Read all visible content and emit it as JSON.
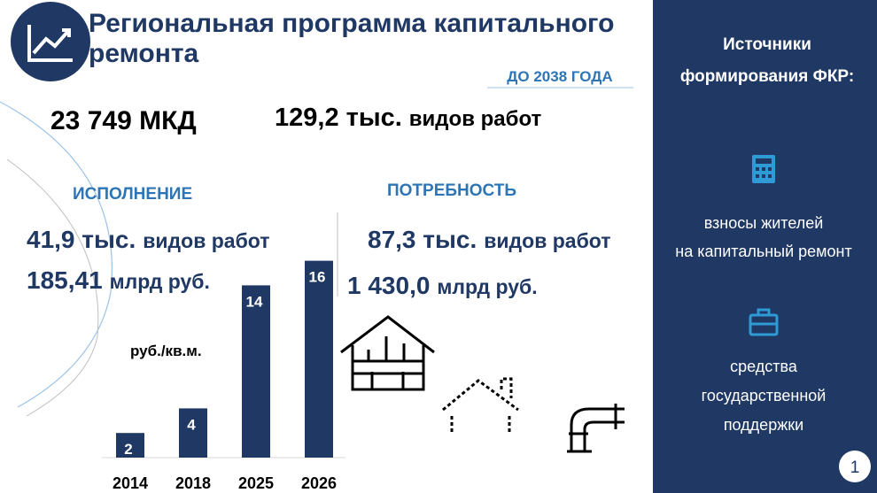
{
  "header": {
    "title_line1": "Региональная программа капитального",
    "title_line2": "ремонта",
    "period": "ДО 2038 ГОДА"
  },
  "totals": {
    "houses": "23 749 МКД",
    "works_number": "129,2 тыс.",
    "works_unit": "видов работ"
  },
  "execution": {
    "heading": "ИСПОЛНЕНИЕ",
    "works_number": "41,9 тыс.",
    "works_unit": "видов работ",
    "money_number": "185,41",
    "money_unit": "млрд руб."
  },
  "need": {
    "heading": "ПОТРЕБНОСТЬ",
    "works_number": "87,3 тыс.",
    "works_unit": "видов работ",
    "money_number": "1 430,0",
    "money_unit": "млрд руб."
  },
  "chart_data": {
    "type": "bar",
    "y_label": "руб./кв.м.",
    "categories": [
      "2014",
      "2018",
      "2025",
      "2026"
    ],
    "values": [
      2,
      4,
      14,
      16
    ],
    "color": "#1f3864"
  },
  "sidebar": {
    "title_line1": "Источники",
    "title_line2": "формирования ФКР:",
    "items": [
      {
        "lines": [
          "взносы жителей",
          "на капитальный ремонт"
        ]
      },
      {
        "lines": [
          "средства",
          "государственной",
          "поддержки"
        ]
      }
    ]
  },
  "page_number": "1"
}
